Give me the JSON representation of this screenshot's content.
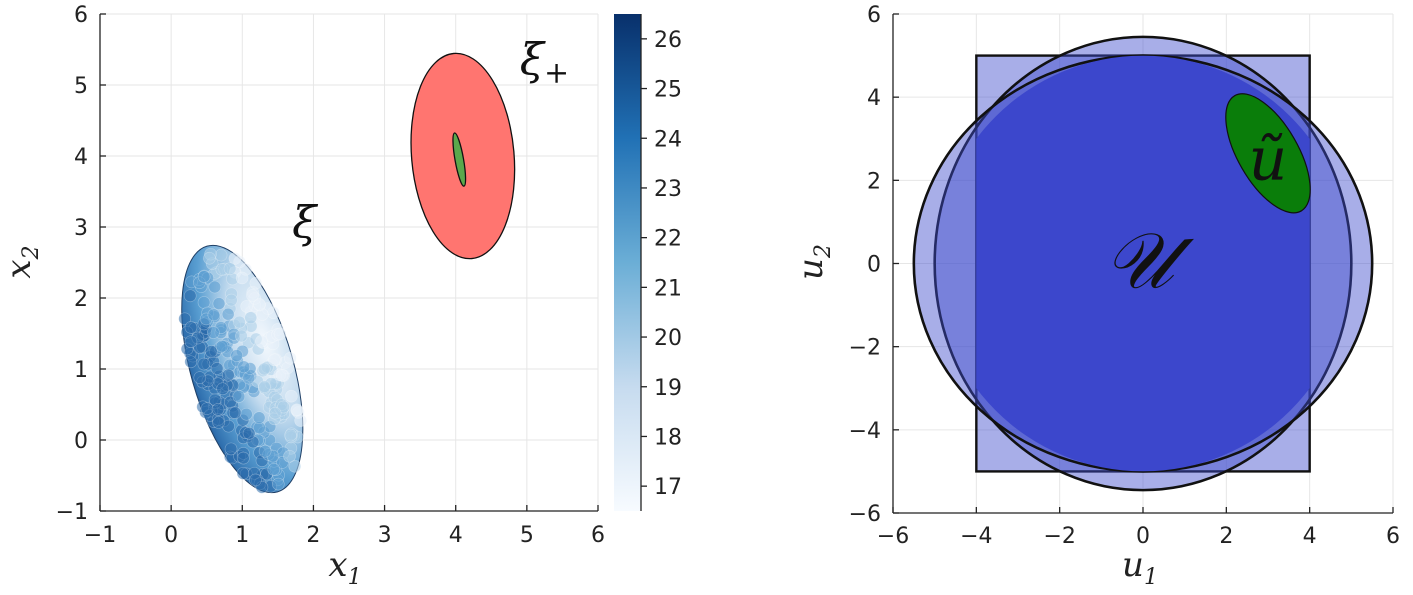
{
  "chart_data": [
    {
      "type": "scatter",
      "x_ticks": [
        "−1",
        "0",
        "1",
        "2",
        "3",
        "4",
        "5",
        "6"
      ],
      "y_ticks": [
        "−1",
        "0",
        "1",
        "2",
        "3",
        "4",
        "5",
        "6"
      ],
      "xlabel": "x",
      "xlabel_sub": "1",
      "ylabel": "x",
      "ylabel_sub": "2",
      "xlim": [
        -1,
        6
      ],
      "ylim": [
        -1,
        6
      ],
      "grid": true,
      "colorbar": {
        "ticks": [
          "17",
          "18",
          "19",
          "20",
          "21",
          "22",
          "23",
          "24",
          "25",
          "26"
        ],
        "range": [
          16.5,
          26.5
        ],
        "colormap": [
          "#f7fbff",
          "#08306b"
        ]
      },
      "ellipses": [
        {
          "name": "ξ₊ outer",
          "center": [
            4.1,
            4.0
          ],
          "semi_axes": [
            0.72,
            1.45
          ],
          "tilt_deg": 5,
          "fill": "#ff7570",
          "alpha": 1
        },
        {
          "name": "ξ₊ inner",
          "center": [
            4.05,
            3.95
          ],
          "semi_axes": [
            0.06,
            0.38
          ],
          "tilt_deg": 10,
          "fill": "#5aa84c",
          "alpha": 1
        }
      ],
      "cloud": {
        "center": [
          1.0,
          1.0
        ],
        "semi_axes": [
          0.72,
          1.8
        ],
        "tilt_deg": 16,
        "value_range": [
          16.5,
          26.5
        ]
      },
      "annotations": [
        {
          "text": "ξ",
          "x": 1.7,
          "y": 2.85
        },
        {
          "text": "ξ",
          "sub": "+",
          "x": 4.9,
          "y": 5.15
        }
      ]
    },
    {
      "type": "area",
      "x_ticks": [
        "−6",
        "−4",
        "−2",
        "0",
        "2",
        "4",
        "6"
      ],
      "y_ticks": [
        "−6",
        "−4",
        "−2",
        "0",
        "2",
        "4",
        "6"
      ],
      "xlabel": "u",
      "xlabel_sub": "1",
      "ylabel": "u",
      "ylabel_sub": "2",
      "xlim": [
        -6,
        6
      ],
      "ylim": [
        -6,
        6
      ],
      "grid": true,
      "shapes": [
        {
          "name": "box",
          "kind": "rect",
          "x": [
            -4,
            4
          ],
          "y": [
            -5,
            5
          ],
          "fill": "#3f4bcc",
          "alpha": 0.45
        },
        {
          "name": "ellipse-wide",
          "kind": "ellipse",
          "center": [
            0,
            0
          ],
          "semi_axes": [
            5.0,
            5.45
          ],
          "fill": "#3f4bcc",
          "alpha": 0.45
        },
        {
          "name": "ellipse-tall",
          "kind": "ellipse",
          "center": [
            0,
            0
          ],
          "semi_axes": [
            5.5,
            5.0
          ],
          "fill": "#3f4bcc",
          "alpha": 0.45
        },
        {
          "name": "intersection",
          "kind": "ellipse-in-box",
          "center": [
            0,
            0
          ],
          "semi_axes": [
            5.0,
            5.0
          ],
          "fill": "#3c47cc",
          "alpha": 1
        },
        {
          "name": "u-tilde",
          "kind": "ellipse",
          "center": [
            3.0,
            2.65
          ],
          "semi_axes": [
            0.72,
            1.6
          ],
          "tilt_deg": 30,
          "fill": "#0a7d0a",
          "alpha": 1
        }
      ],
      "annotations": [
        {
          "text": "𝒰",
          "x": -0.1,
          "y": -0.1
        },
        {
          "text": "ũ",
          "x": 3.0,
          "y": 2.5
        }
      ]
    }
  ]
}
